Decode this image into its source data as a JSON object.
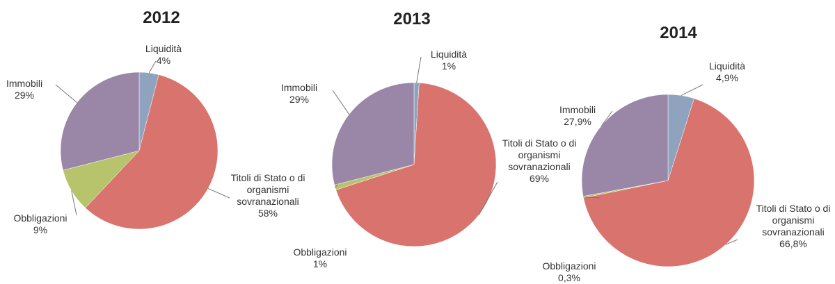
{
  "chart_data": [
    {
      "type": "pie",
      "title": "2012",
      "categories": [
        "Liquidità",
        "Titoli di Stato o di organismi sovranazionali",
        "Obbligazioni",
        "Immobili"
      ],
      "values": [
        4,
        58,
        9,
        29
      ],
      "value_labels": [
        "4%",
        "58%",
        "9%",
        "29%"
      ],
      "colors": [
        "#8fa3bf",
        "#d9736e",
        "#b8c46c",
        "#9a86a6"
      ]
    },
    {
      "type": "pie",
      "title": "2013",
      "categories": [
        "Liquidità",
        "Titoli di Stato o di organismi sovranazionali",
        "Obbligazioni",
        "Immobili"
      ],
      "values": [
        1,
        69,
        1,
        29
      ],
      "value_labels": [
        "1%",
        "69%",
        "1%",
        "29%"
      ],
      "colors": [
        "#8fa3bf",
        "#d9736e",
        "#b8c46c",
        "#9a86a6"
      ]
    },
    {
      "type": "pie",
      "title": "2014",
      "categories": [
        "Liquidità",
        "Titoli di Stato o di organismi sovranazionali",
        "Obbligazioni",
        "Immobili"
      ],
      "values": [
        4.9,
        66.8,
        0.3,
        27.9
      ],
      "value_labels": [
        "4,9%",
        "66,8%",
        "0,3%",
        "27,9%"
      ],
      "colors": [
        "#8fa3bf",
        "#d9736e",
        "#b8c46c",
        "#9a86a6"
      ]
    }
  ]
}
